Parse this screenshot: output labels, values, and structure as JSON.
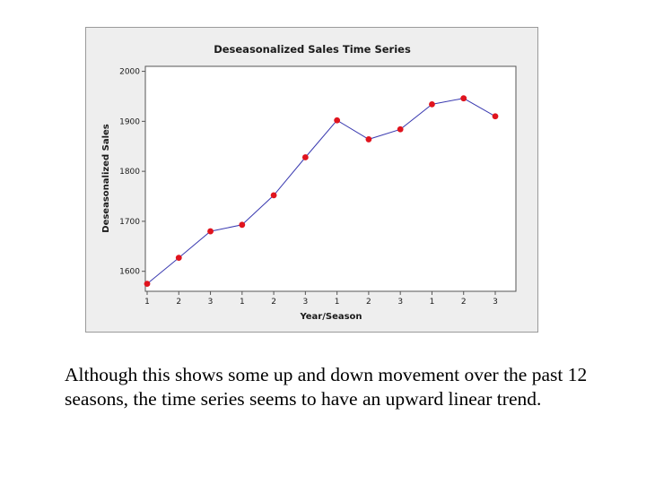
{
  "chart_data": {
    "type": "line",
    "title": "Deseasonalized Sales Time Series",
    "xlabel": "Year/Season",
    "ylabel": "Deseasonalized Sales",
    "categories": [
      "1",
      "2",
      "3",
      "1",
      "2",
      "3",
      "1",
      "2",
      "3",
      "1",
      "2",
      "3"
    ],
    "values": [
      1575,
      1627,
      1680,
      1693,
      1752,
      1828,
      1902,
      1864,
      1884,
      1934,
      1946,
      1910
    ],
    "yticks": [
      1600,
      1700,
      1800,
      1900,
      2000
    ],
    "ylim": [
      1560,
      2010
    ],
    "grid": false,
    "line_color": "#3a3ab0",
    "marker_color": "#e0141e",
    "plot_background": "#ffffff",
    "frame_background": "#eeeeee"
  },
  "caption": "Although this shows some up and down movement over the past 12 seasons, the time series seems to have an upward linear trend."
}
